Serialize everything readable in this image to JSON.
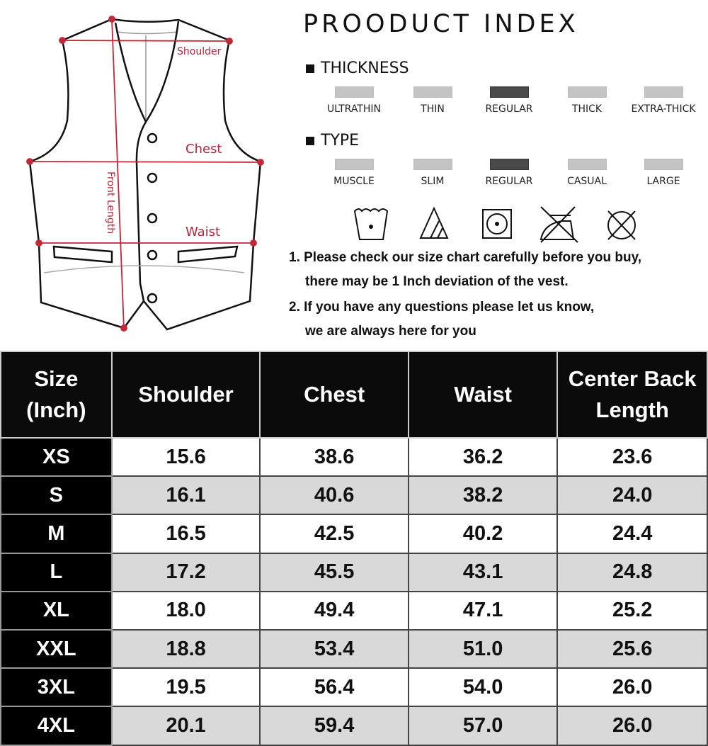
{
  "diagram": {
    "labels": {
      "shoulder": "Shoulder",
      "chest": "Chest",
      "waist": "Waist",
      "front_length": "Front Length"
    },
    "measure_color": "#c0283a"
  },
  "index": {
    "title": "PROODUCT INDEX",
    "thickness": {
      "label": "THICKNESS",
      "options": [
        "ULTRATHIN",
        "THIN",
        "REGULAR",
        "THICK",
        "EXTRA-THICK"
      ],
      "selected": "REGULAR"
    },
    "type": {
      "label": "TYPE",
      "options": [
        "MUSCLE",
        "SLIM",
        "REGULAR",
        "CASUAL",
        "LARGE"
      ],
      "selected": "REGULAR"
    },
    "care_icons": [
      "hand-wash-icon",
      "bleach-non-chlorine-icon",
      "tumble-dry-icon",
      "do-not-iron-icon",
      "do-not-dry-clean-icon"
    ]
  },
  "notes": [
    "1. Please check our size chart carefully before you buy,",
    "there may be 1 Inch deviation of the vest.",
    "2. If you have any questions please let us know,",
    "we are always here for you"
  ],
  "table": {
    "headers": [
      "Size (Inch)",
      "Shoulder",
      "Chest",
      "Waist",
      "Center Back Length"
    ],
    "rows": [
      [
        "XS",
        "15.6",
        "38.6",
        "36.2",
        "23.6"
      ],
      [
        "S",
        "16.1",
        "40.6",
        "38.2",
        "24.0"
      ],
      [
        "M",
        "16.5",
        "42.5",
        "40.2",
        "24.4"
      ],
      [
        "L",
        "17.2",
        "45.5",
        "43.1",
        "24.8"
      ],
      [
        "XL",
        "18.0",
        "49.4",
        "47.1",
        "25.2"
      ],
      [
        "XXL",
        "18.8",
        "53.4",
        "51.0",
        "25.6"
      ],
      [
        "3XL",
        "19.5",
        "56.4",
        "54.0",
        "26.0"
      ],
      [
        "4XL",
        "20.1",
        "59.4",
        "57.0",
        "26.0"
      ]
    ]
  }
}
